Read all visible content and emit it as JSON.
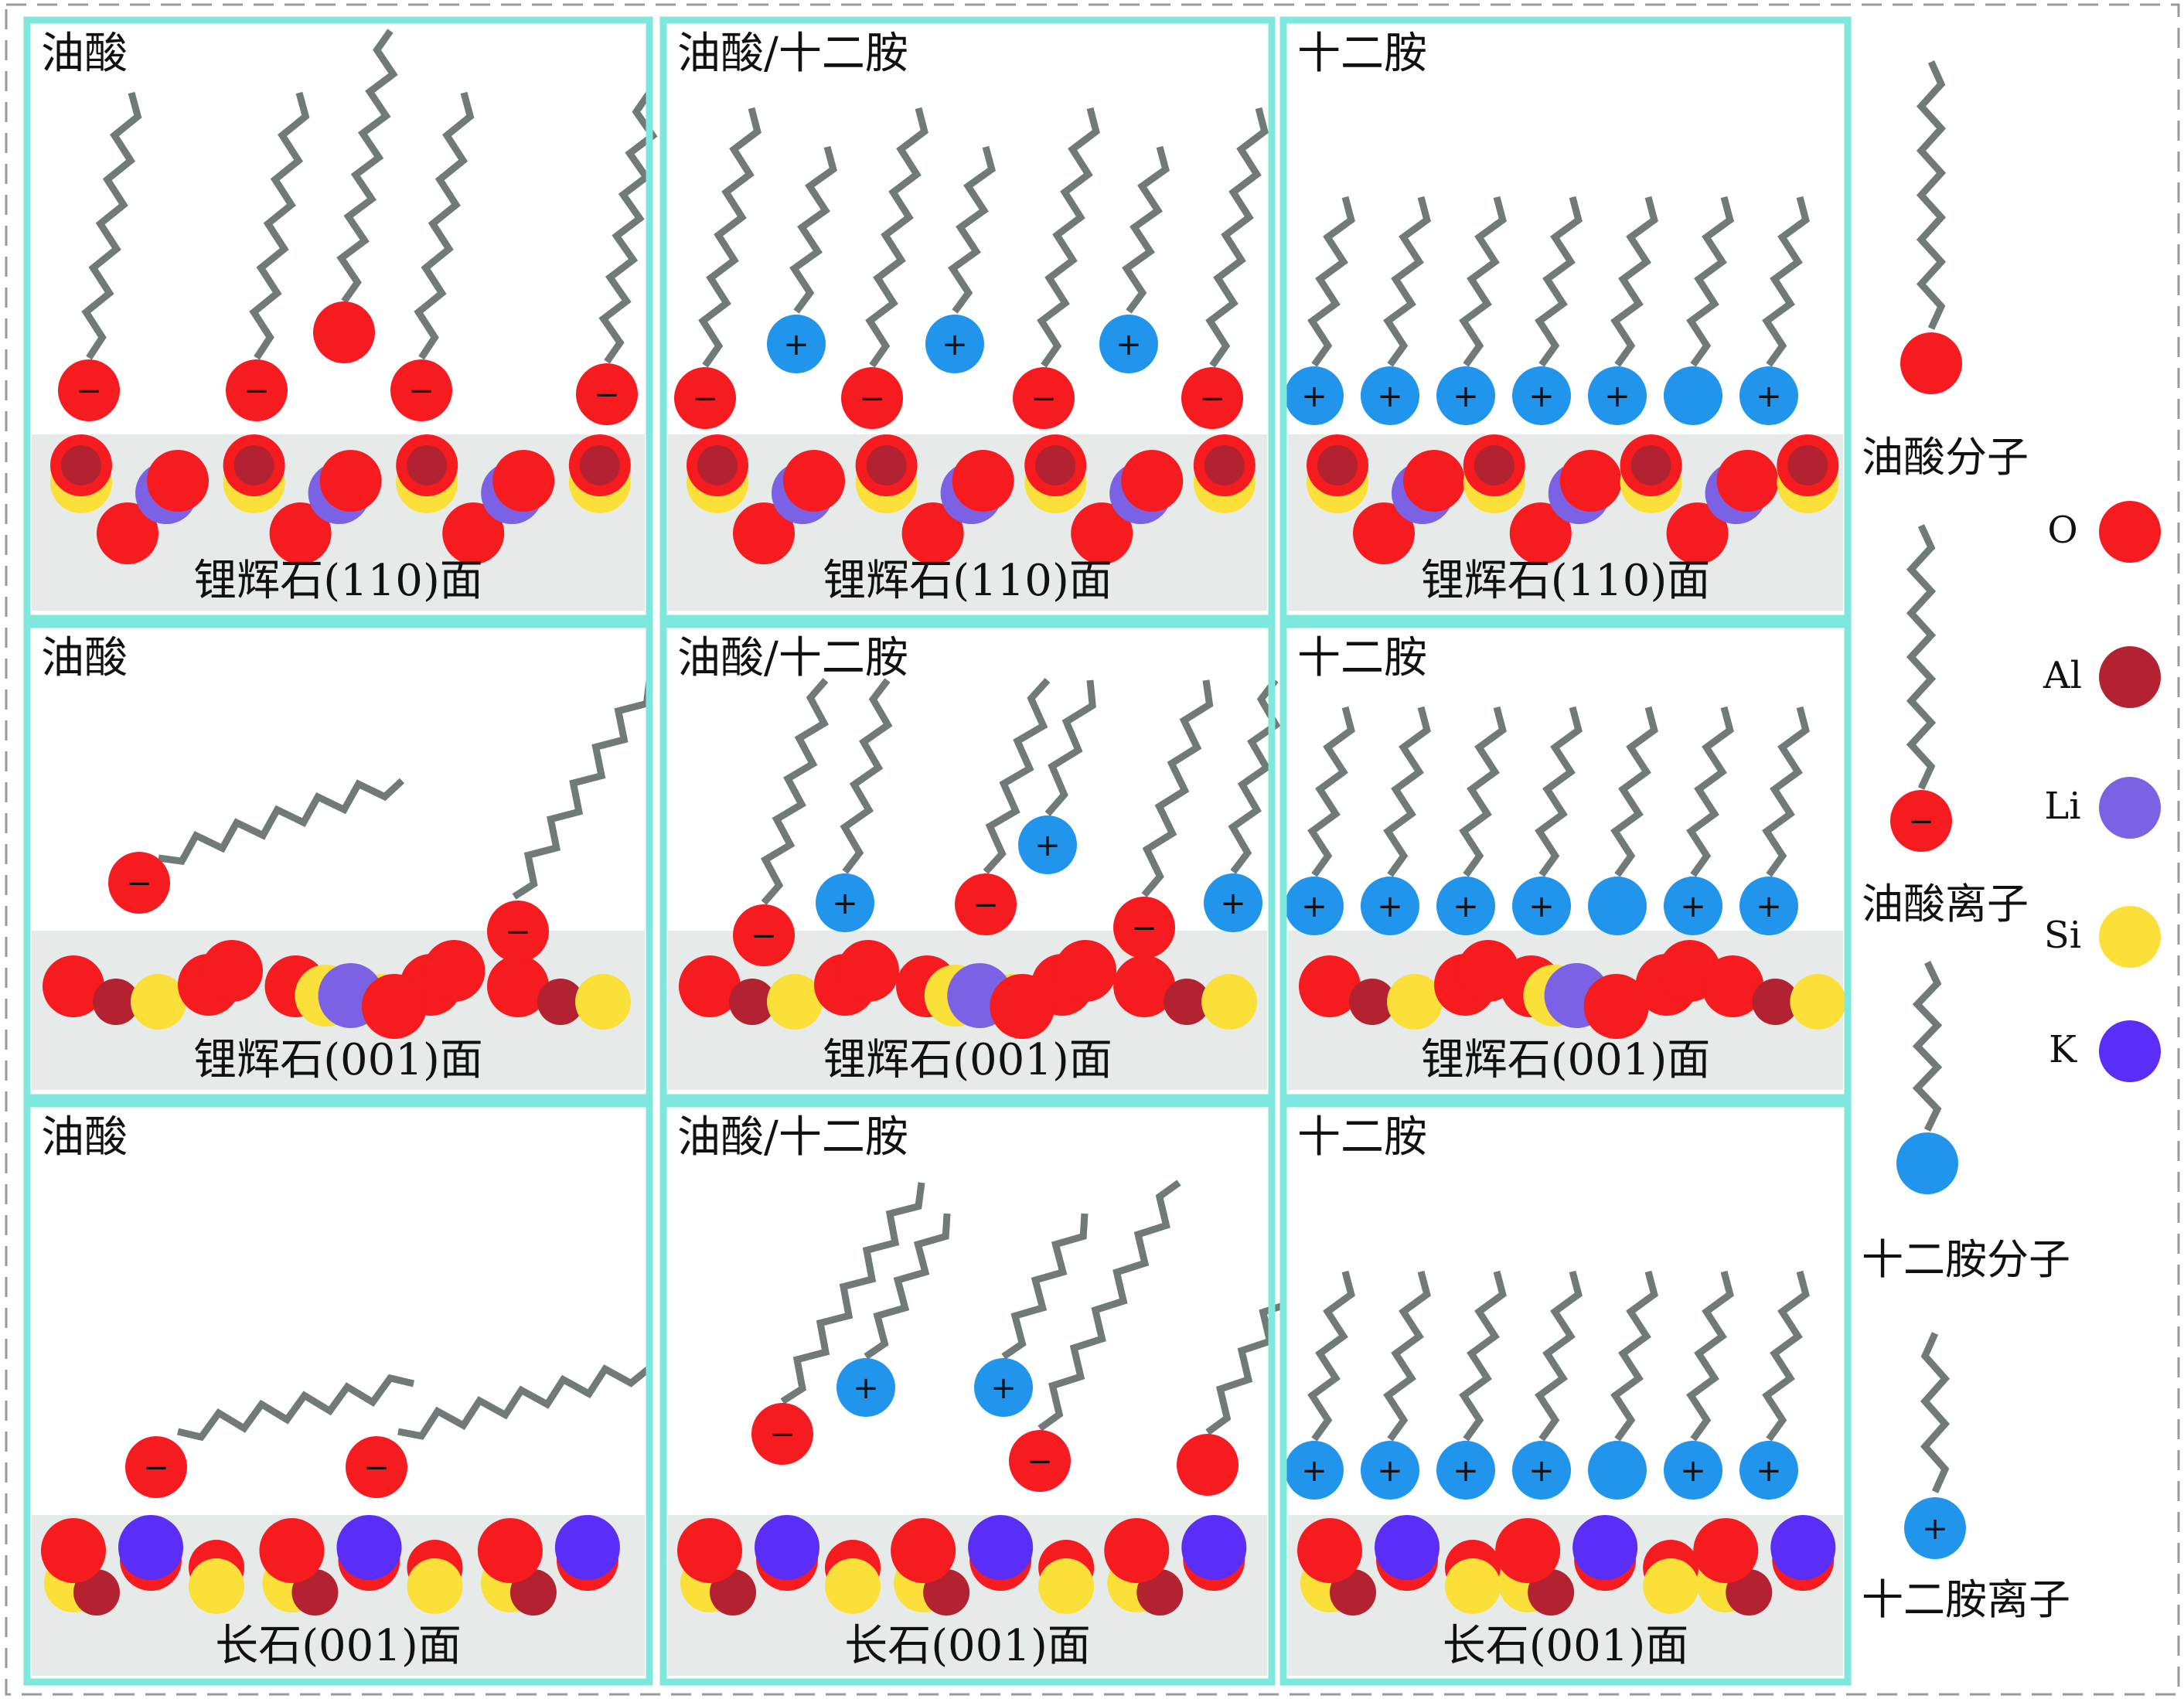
{
  "colors": {
    "O": "#f51b1f",
    "Al": "#b32230",
    "Li": "#7b62e4",
    "Si": "#fbe03a",
    "K": "#5a2ef6",
    "amine": "#2194ec",
    "frame": "#7fe8de",
    "substrate": "#e6ebea",
    "chain": "#6f7a79"
  },
  "columns": [
    "油酸",
    "油酸/十二胺",
    "十二胺"
  ],
  "rows": [
    {
      "surface": "锂辉石(110)面"
    },
    {
      "surface": "锂辉石(001)面"
    },
    {
      "surface": "长石(001)面"
    }
  ],
  "legend": {
    "oleic_molecule": "油酸分子",
    "oleic_ion": "油酸离子",
    "amine_molecule": "十二胺分子",
    "amine_ion": "十二胺离子",
    "elements": [
      {
        "symbol": "O",
        "color_key": "O"
      },
      {
        "symbol": "Al",
        "color_key": "Al"
      },
      {
        "symbol": "Li",
        "color_key": "Li"
      },
      {
        "symbol": "Si",
        "color_key": "Si"
      },
      {
        "symbol": "K",
        "color_key": "K"
      }
    ]
  },
  "charges": {
    "negative": "−",
    "positive": "+"
  }
}
